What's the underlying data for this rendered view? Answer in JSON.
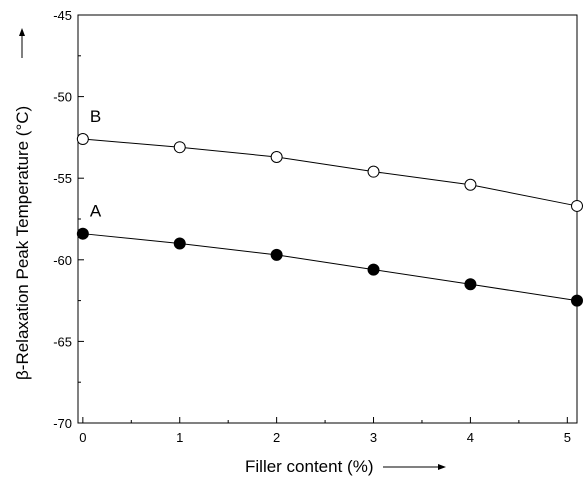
{
  "chart_data": {
    "type": "line",
    "xlabel": "Filler content (%)",
    "ylabel": "β-Relaxation Peak Temperature (°C)",
    "xlim": [
      -0.05,
      5.1
    ],
    "ylim": [
      -70,
      -45
    ],
    "xticks": [
      0,
      1,
      2,
      3,
      4,
      5
    ],
    "yticks": [
      -45,
      -50,
      -55,
      -60,
      -65,
      -70
    ],
    "xtick_labels": [
      "0",
      "1",
      "2",
      "3",
      "4",
      "5"
    ],
    "ytick_labels": [
      "-45",
      "-50",
      "-55",
      "-60",
      "-65",
      "-70"
    ],
    "grid": false,
    "series": [
      {
        "name": "B",
        "marker": "open-circle",
        "color": "#000000",
        "x": [
          0,
          1,
          2,
          3,
          4,
          5.1
        ],
        "y": [
          -52.6,
          -53.1,
          -53.7,
          -54.6,
          -55.4,
          -56.7
        ]
      },
      {
        "name": "A",
        "marker": "filled-circle",
        "color": "#000000",
        "x": [
          0,
          1,
          2,
          3,
          4,
          5.1
        ],
        "y": [
          -58.4,
          -59.0,
          -59.7,
          -60.6,
          -61.5,
          -62.5
        ]
      }
    ]
  }
}
